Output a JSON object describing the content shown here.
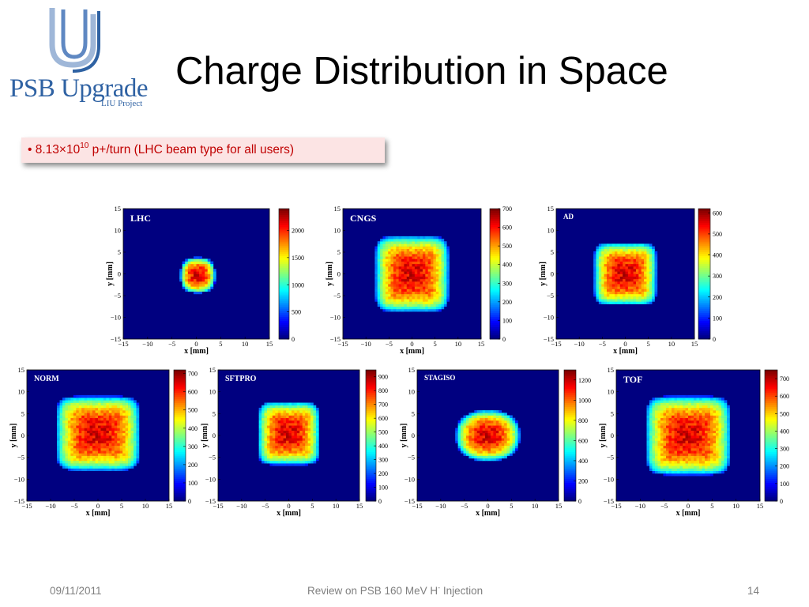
{
  "logo": {
    "main": "PSB Upgrade",
    "sub": "LIU Project"
  },
  "slide": {
    "title": "Charge Distribution in Space",
    "bullet": {
      "marker": "•",
      "pre": "8.13×10",
      "exp": "10",
      "post": " p+/turn  (LHC beam type for all users)"
    }
  },
  "footer": {
    "date": "09/11/2011",
    "center_pre": "Review on PSB 160 MeV H",
    "center_sup": "-",
    "center_post": " Injection",
    "page": "14"
  },
  "colors": {
    "accent": "#c00000",
    "logo": "#2f62a3",
    "bullet_bg": "#fce4e4",
    "plot_bg": "#0000a8"
  },
  "chart_data": [
    {
      "type": "heatmap",
      "title": "LHC",
      "xlabel": "x [mm]",
      "ylabel": "y [mm]",
      "xlim": [
        -15,
        15
      ],
      "ylim": [
        -15,
        15
      ],
      "x_ticks": [
        -15,
        -10,
        -5,
        0,
        5,
        10,
        15
      ],
      "y_ticks": [
        15,
        10,
        5,
        0,
        -5,
        -10,
        -15
      ],
      "colorbar_max": 2400,
      "colorbar_ticks": [
        0,
        500,
        1000,
        1500,
        2000
      ],
      "shape": {
        "cx": 0.3,
        "cy": -0.3,
        "rx": 3.6,
        "ry": 4.1,
        "p": 2.6
      }
    },
    {
      "type": "heatmap",
      "title": "CNGS",
      "xlabel": "x [mm]",
      "ylabel": "y [mm]",
      "xlim": [
        -15,
        15
      ],
      "ylim": [
        -15,
        15
      ],
      "x_ticks": [
        -15,
        -10,
        -5,
        0,
        5,
        10,
        15
      ],
      "y_ticks": [
        15,
        10,
        5,
        0,
        -5,
        -10,
        -15
      ],
      "colorbar_max": 700,
      "colorbar_ticks": [
        0,
        100,
        200,
        300,
        400,
        500,
        600,
        700
      ],
      "shape": {
        "cx": 0,
        "cy": 0,
        "rx": 8.0,
        "ry": 8.7,
        "p": 6
      }
    },
    {
      "type": "heatmap",
      "title": "AD",
      "xlabel": "x [mm]",
      "ylabel": "y [mm]",
      "xlim": [
        -15,
        15
      ],
      "ylim": [
        -15,
        15
      ],
      "x_ticks": [
        -15,
        -10,
        -5,
        0,
        5,
        10,
        15
      ],
      "y_ticks": [
        15,
        10,
        5,
        0,
        -5,
        -10,
        -15
      ],
      "colorbar_max": 620,
      "colorbar_ticks": [
        0,
        100,
        200,
        300,
        400,
        500,
        600
      ],
      "shape": {
        "cx": 0,
        "cy": 0,
        "rx": 6.8,
        "ry": 7.2,
        "p": 6
      }
    },
    {
      "type": "heatmap",
      "title": "NORM",
      "xlabel": "x [mm]",
      "ylabel": "y [mm]",
      "xlim": [
        -15,
        15
      ],
      "ylim": [
        -15,
        15
      ],
      "x_ticks": [
        -15,
        -10,
        -5,
        0,
        5,
        10,
        15
      ],
      "y_ticks": [
        15,
        10,
        5,
        0,
        -5,
        -10,
        -15
      ],
      "colorbar_max": 720,
      "colorbar_ticks": [
        0,
        100,
        200,
        300,
        400,
        500,
        600,
        700
      ],
      "shape": {
        "cx": 0,
        "cy": 0.5,
        "rx": 8.8,
        "ry": 8.5,
        "p": 6
      }
    },
    {
      "type": "heatmap",
      "title": "SFTPRO",
      "xlabel": "x [mm]",
      "ylabel": "y [mm]",
      "xlim": [
        -15,
        15
      ],
      "ylim": [
        -15,
        15
      ],
      "x_ticks": [
        -15,
        -10,
        -5,
        0,
        5,
        10,
        15
      ],
      "y_ticks": [
        15,
        10,
        5,
        0,
        -5,
        -10,
        -15
      ],
      "colorbar_max": 950,
      "colorbar_ticks": [
        0,
        100,
        200,
        300,
        400,
        500,
        600,
        700,
        800,
        900
      ],
      "shape": {
        "cx": 0,
        "cy": 0.5,
        "rx": 6.5,
        "ry": 7.2,
        "p": 6
      }
    },
    {
      "type": "heatmap",
      "title": "STAGISO",
      "xlabel": "x [mm]",
      "ylabel": "y [mm]",
      "xlim": [
        -15,
        15
      ],
      "ylim": [
        -15,
        15
      ],
      "x_ticks": [
        -15,
        -10,
        -5,
        0,
        5,
        10,
        15
      ],
      "y_ticks": [
        15,
        10,
        5,
        0,
        -5,
        -10,
        -15
      ],
      "colorbar_max": 1300,
      "colorbar_ticks": [
        0,
        200,
        400,
        600,
        800,
        1000,
        1200
      ],
      "shape": {
        "cx": 0,
        "cy": 0,
        "rx": 6.8,
        "ry": 5.8,
        "p": 2.4
      }
    },
    {
      "type": "heatmap",
      "title": "TOF",
      "xlabel": "x [mm]",
      "ylabel": "y [mm]",
      "xlim": [
        -15,
        15
      ],
      "ylim": [
        -15,
        15
      ],
      "x_ticks": [
        -15,
        -10,
        -5,
        0,
        5,
        10,
        15
      ],
      "y_ticks": [
        15,
        10,
        5,
        0,
        -5,
        -10,
        -15
      ],
      "colorbar_max": 750,
      "colorbar_ticks": [
        0,
        100,
        200,
        300,
        400,
        500,
        600,
        700
      ],
      "shape": {
        "cx": 0,
        "cy": 0,
        "rx": 8.8,
        "ry": 9.0,
        "p": 6
      }
    }
  ]
}
